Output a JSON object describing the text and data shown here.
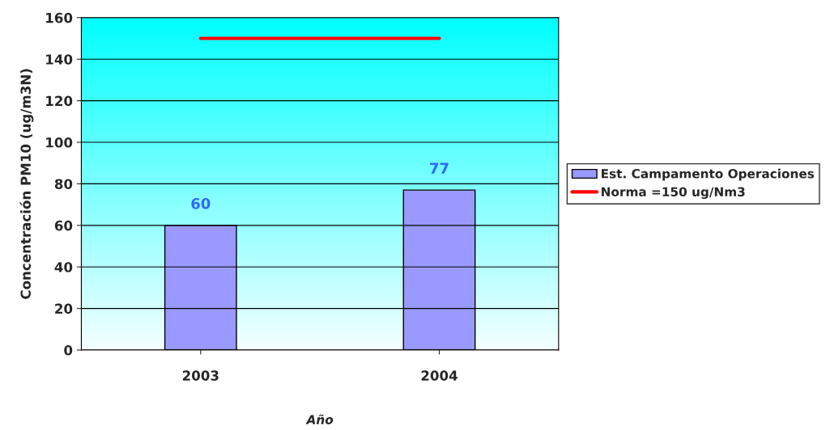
{
  "chart_data": {
    "type": "bar",
    "xlabel": "Año",
    "ylabel": "Concentración PM10 (ug/m3N)",
    "categories": [
      "2003",
      "2004"
    ],
    "series": [
      {
        "name": "Est. Campamento Operaciones",
        "color": "#9999ff",
        "values": [
          60,
          77
        ],
        "value_labels": [
          "60",
          "77"
        ]
      },
      {
        "name": "Norma =150 ug/Nm3",
        "type": "line",
        "color": "#ff0000",
        "values": [
          150,
          150
        ],
        "marker": "none",
        "line_style": "solid"
      }
    ],
    "ylim": [
      0,
      160
    ],
    "yticks": [
      0,
      20,
      40,
      60,
      80,
      100,
      120,
      140,
      160
    ],
    "grid": "y",
    "legend": "right"
  }
}
